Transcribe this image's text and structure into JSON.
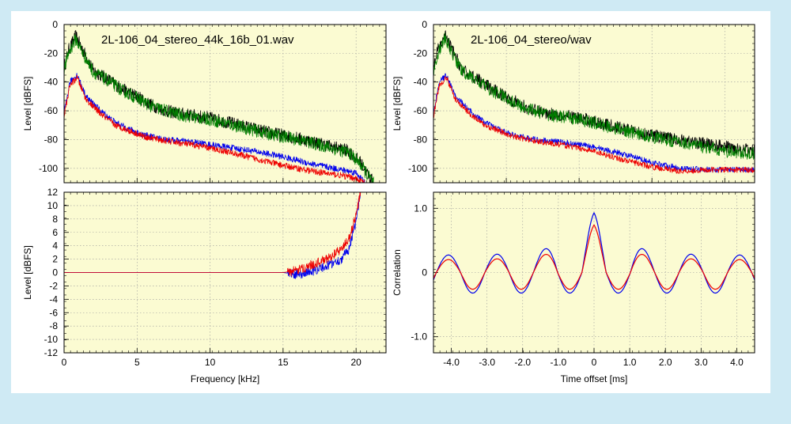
{
  "colors": {
    "background": "#cfeaf4",
    "panel": "#ffffff",
    "plot_fill": "#fbfbd2",
    "black": "#000000",
    "green": "#008000",
    "blue": "#0000ee",
    "red": "#ee0000"
  },
  "chart_data": [
    {
      "type": "line",
      "position": "top-left",
      "title": "2L-106_04_stereo_44k_16b_01.wav",
      "xlabel": "",
      "ylabel": "Level [dBFS]",
      "xlim": [
        0,
        22.05
      ],
      "ylim": [
        -110,
        0
      ],
      "xticks": [
        0,
        5,
        10,
        15,
        20
      ],
      "yticks": [
        0,
        -20,
        -40,
        -60,
        -80,
        -100
      ],
      "ytick_labels": [
        "0",
        "-20",
        "-40",
        "-60",
        "-80",
        "-100"
      ],
      "grid": true,
      "series": [
        {
          "color": "black",
          "noise": 4.5,
          "x": [
            0,
            0.3,
            0.8,
            1.3,
            2,
            3,
            4,
            5,
            6,
            7,
            8,
            10,
            12,
            14,
            16,
            18,
            19.5,
            20.3,
            20.8,
            21.2
          ],
          "y": [
            -30,
            -18,
            -8,
            -18,
            -32,
            -38,
            -45,
            -50,
            -56,
            -60,
            -62,
            -65,
            -70,
            -75,
            -79,
            -84,
            -88,
            -96,
            -104,
            -110
          ]
        },
        {
          "color": "green",
          "noise": 4.5,
          "x": [
            0,
            0.3,
            0.8,
            1.3,
            2,
            3,
            4,
            5,
            6,
            7,
            8,
            10,
            12,
            14,
            16,
            18,
            19.5,
            20.3,
            20.8,
            21.2
          ],
          "y": [
            -32,
            -20,
            -10,
            -20,
            -33,
            -39,
            -46,
            -51,
            -57,
            -60,
            -63,
            -66,
            -71,
            -76,
            -80,
            -85,
            -89,
            -97,
            -105,
            -110
          ]
        },
        {
          "color": "blue",
          "noise": 2.2,
          "x": [
            0,
            0.4,
            0.9,
            1.5,
            2.5,
            3.5,
            4.5,
            5.5,
            7,
            9,
            11,
            13,
            15,
            17,
            19,
            20,
            20.6
          ],
          "y": [
            -62,
            -40,
            -35,
            -50,
            -60,
            -68,
            -73,
            -77,
            -80,
            -82,
            -85,
            -88,
            -92,
            -97,
            -101,
            -103,
            -110
          ]
        },
        {
          "color": "red",
          "noise": 2.2,
          "x": [
            0,
            0.4,
            0.9,
            1.5,
            2.5,
            3.5,
            4.5,
            5.5,
            7,
            9,
            11,
            13,
            15,
            17,
            19,
            20,
            20.6
          ],
          "y": [
            -64,
            -42,
            -37,
            -52,
            -62,
            -70,
            -74,
            -78,
            -81,
            -84,
            -88,
            -93,
            -98,
            -102,
            -105,
            -107,
            -110
          ]
        }
      ]
    },
    {
      "type": "line",
      "position": "top-right",
      "title": "2L-106_04_stereo/wav",
      "xlabel": "",
      "ylabel": "Level [dBFS]",
      "xlim": [
        0,
        22.05
      ],
      "ylim": [
        -110,
        0
      ],
      "xticks": [
        0,
        5,
        10,
        15,
        20
      ],
      "yticks": [
        0,
        -20,
        -40,
        -60,
        -80,
        -100
      ],
      "ytick_labels": [
        "0",
        "-20",
        "-40",
        "-60",
        "-80",
        "-100"
      ],
      "grid": true,
      "series": [
        {
          "color": "black",
          "noise": 4.5,
          "x": [
            0,
            0.3,
            0.8,
            1.3,
            2,
            3,
            4,
            5,
            6,
            7,
            8,
            10,
            12,
            14,
            16,
            18,
            20,
            22.05
          ],
          "y": [
            -30,
            -18,
            -8,
            -18,
            -32,
            -38,
            -45,
            -50,
            -56,
            -60,
            -62,
            -65,
            -70,
            -75,
            -79,
            -82,
            -85,
            -88
          ]
        },
        {
          "color": "green",
          "noise": 4.5,
          "x": [
            0,
            0.3,
            0.8,
            1.3,
            2,
            3,
            4,
            5,
            6,
            7,
            8,
            10,
            12,
            14,
            16,
            18,
            20,
            22.05
          ],
          "y": [
            -32,
            -20,
            -10,
            -20,
            -33,
            -39,
            -46,
            -51,
            -57,
            -60,
            -63,
            -66,
            -71,
            -76,
            -80,
            -84,
            -88,
            -90
          ]
        },
        {
          "color": "blue",
          "noise": 2.0,
          "x": [
            0,
            0.4,
            0.9,
            1.5,
            2.5,
            3.5,
            4.5,
            5.5,
            7,
            9,
            11,
            13,
            15,
            17,
            19,
            22.05
          ],
          "y": [
            -62,
            -40,
            -35,
            -50,
            -60,
            -68,
            -73,
            -77,
            -80,
            -82,
            -85,
            -90,
            -96,
            -100,
            -101,
            -101
          ]
        },
        {
          "color": "red",
          "noise": 2.0,
          "x": [
            0,
            0.4,
            0.9,
            1.5,
            2.5,
            3.5,
            4.5,
            5.5,
            7,
            9,
            11,
            13,
            15,
            17,
            19,
            22.05
          ],
          "y": [
            -64,
            -42,
            -37,
            -52,
            -62,
            -70,
            -74,
            -78,
            -81,
            -84,
            -88,
            -94,
            -99,
            -102,
            -101,
            -101
          ]
        }
      ]
    },
    {
      "type": "line",
      "position": "bottom-left",
      "title": "",
      "xlabel": "Frequency [kHz]",
      "ylabel": "Level [dBFS]",
      "xlim": [
        0,
        22.05
      ],
      "ylim": [
        -12,
        12
      ],
      "xticks": [
        0,
        5,
        10,
        15,
        20
      ],
      "xtick_labels": [
        "0",
        "5",
        "10",
        "15",
        "20"
      ],
      "yticks": [
        12,
        10,
        8,
        6,
        4,
        2,
        0,
        -2,
        -4,
        -6,
        -8,
        -10,
        -12
      ],
      "ytick_labels": [
        "12",
        "10",
        "8",
        "6",
        "4",
        "2",
        "0",
        "-2",
        "-4",
        "-6",
        "-8",
        "-10",
        "-12"
      ],
      "grid": true,
      "series": [
        {
          "color": "blue",
          "noise": 0.7,
          "noise_from": 15.3,
          "x": [
            0,
            15,
            16,
            17,
            18,
            19,
            19.5,
            20,
            20.3
          ],
          "y": [
            0,
            0,
            -0.3,
            0.2,
            1.0,
            2.0,
            3.5,
            7.5,
            12
          ]
        },
        {
          "color": "red",
          "noise": 0.7,
          "noise_from": 15.3,
          "x": [
            0,
            15,
            16,
            17,
            18,
            19,
            19.5,
            20,
            20.3
          ],
          "y": [
            0,
            0,
            0.3,
            1.2,
            2.0,
            3.5,
            5.0,
            8.5,
            12
          ]
        }
      ]
    },
    {
      "type": "line",
      "position": "bottom-right",
      "title": "",
      "xlabel": "Time offset [ms]",
      "ylabel": "Correlation",
      "xlim": [
        -4.5,
        4.5
      ],
      "ylim": [
        -1.25,
        1.25
      ],
      "xticks": [
        -4,
        -3,
        -2,
        -1,
        0,
        1,
        2,
        3,
        4
      ],
      "xtick_labels": [
        "-4.0",
        "-3.0",
        "-2.0",
        "-1.0",
        "0",
        "1.0",
        "2.0",
        "3.0",
        "4.0"
      ],
      "yticks": [
        1,
        0,
        -1
      ],
      "ytick_labels": [
        "1.0",
        "0",
        "-1.0"
      ],
      "grid": true,
      "series": [
        {
          "color": "blue",
          "fn": "corr",
          "a": 0.93,
          "decay": 0.72,
          "floor": 0.27,
          "neg": 0.32
        },
        {
          "color": "red",
          "fn": "corr",
          "a": 0.74,
          "decay": 0.72,
          "floor": 0.2,
          "neg": 0.26
        }
      ]
    }
  ]
}
